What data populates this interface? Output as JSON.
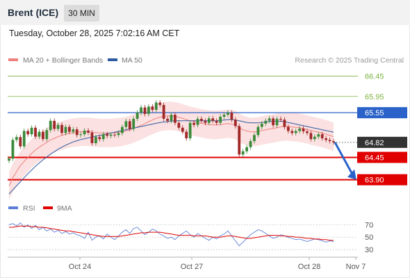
{
  "header": {
    "instrument": "Brent (ICE)",
    "timeframe": "30 MIN",
    "timestamp": "Tuesday, October 28, 2025 7:02:16 AM CET"
  },
  "legend": {
    "ma20_label": "MA 20 + Bollinger Bands",
    "ma20_color": "#f08080",
    "ma50_label": "MA 50",
    "ma50_color": "#2c5aa0"
  },
  "copyright": "Research © 2025 Trading Central",
  "chart_data": [
    {
      "type": "line",
      "title": "",
      "xlabel": "",
      "ylabel": "",
      "ylim": [
        63.5,
        66.75
      ],
      "x_ticks": [
        "Oct 24",
        "Oct 27",
        "Oct 28",
        "Nov 7"
      ],
      "levels": [
        {
          "value": 66.45,
          "label": "66.45",
          "kind": "resistance",
          "color": "#7cb342"
        },
        {
          "value": 65.95,
          "label": "65.95",
          "kind": "resistance",
          "color": "#7cb342"
        },
        {
          "value": 65.55,
          "label": "65.55",
          "kind": "pivot",
          "color": "#2a62c9"
        },
        {
          "value": 64.45,
          "label": "64.45",
          "kind": "support",
          "color": "#e00000"
        },
        {
          "value": 63.9,
          "label": "63.90",
          "kind": "support",
          "color": "#e00000"
        }
      ],
      "last_price": {
        "value": 64.82,
        "label": "64.82",
        "color": "#333333"
      },
      "forecast_arrow": {
        "from": 64.82,
        "to": 63.9,
        "color": "#2a62c9"
      },
      "series": [
        {
          "name": "Price",
          "values": [
            64.42,
            64.88,
            64.95,
            64.72,
            65.1,
            65.02,
            65.18,
            64.96,
            65.08,
            64.9,
            65.12,
            65.35,
            65.15,
            65.25,
            65.05,
            65.2,
            65.08,
            65.14,
            65.0,
            65.02,
            65.11,
            65.06,
            64.8,
            64.95,
            64.9,
            65.02,
            64.98,
            65.01,
            65.0,
            65.05,
            65.2,
            65.34,
            65.15,
            65.4,
            65.55,
            65.68,
            65.52,
            65.7,
            65.62,
            65.8,
            65.74,
            65.4,
            65.35,
            65.5,
            65.3,
            65.18,
            65.08,
            64.92,
            65.3,
            65.25,
            65.4,
            65.35,
            65.3,
            65.41,
            65.35,
            65.3,
            65.45,
            65.5,
            65.55,
            65.38,
            65.22,
            64.52,
            64.6,
            64.7,
            64.85,
            65.0,
            65.2,
            65.28,
            65.35,
            65.41,
            65.24,
            65.4,
            65.38,
            65.2,
            65.1,
            65.05,
            65.1,
            65.16,
            65.09,
            65.05,
            64.9,
            64.96,
            65.02,
            64.92,
            64.88,
            64.85,
            64.82
          ]
        },
        {
          "name": "MA 20",
          "values": [
            63.75,
            63.95,
            64.1,
            64.25,
            64.35,
            64.45,
            64.55,
            64.63,
            64.7,
            64.76,
            64.82,
            64.88,
            64.92,
            64.96,
            64.99,
            65.02,
            65.04,
            65.06,
            65.07,
            65.08,
            65.08,
            65.08,
            65.07,
            65.06,
            65.05,
            65.05,
            65.05,
            65.05,
            65.06,
            65.07,
            65.08,
            65.1,
            65.13,
            65.16,
            65.2,
            65.24,
            65.28,
            65.33,
            65.37,
            65.41,
            65.44,
            65.46,
            65.47,
            65.47,
            65.46,
            65.44,
            65.41,
            65.38,
            65.35,
            65.33,
            65.31,
            65.29,
            65.27,
            65.26,
            65.25,
            65.25,
            65.26,
            65.27,
            65.28,
            65.27,
            65.25,
            65.18,
            65.13,
            65.1,
            65.08,
            65.08,
            65.09,
            65.11,
            65.13,
            65.15,
            65.16,
            65.18,
            65.2,
            65.21,
            65.21,
            65.2,
            65.19,
            65.18,
            65.16,
            65.14,
            65.11,
            65.09,
            65.07,
            65.05,
            65.02,
            64.99,
            64.96
          ]
        },
        {
          "name": "MA 50",
          "values": [
            63.55,
            63.65,
            63.75,
            63.85,
            63.95,
            64.05,
            64.14,
            64.23,
            64.31,
            64.39,
            64.46,
            64.53,
            64.59,
            64.65,
            64.7,
            64.75,
            64.79,
            64.83,
            64.86,
            64.89,
            64.91,
            64.93,
            64.95,
            64.97,
            64.99,
            65.01,
            65.03,
            65.05,
            65.07,
            65.09,
            65.11,
            65.13,
            65.15,
            65.17,
            65.19,
            65.21,
            65.23,
            65.25,
            65.27,
            65.29,
            65.31,
            65.32,
            65.33,
            65.34,
            65.35,
            65.35,
            65.35,
            65.35,
            65.35,
            65.35,
            65.35,
            65.35,
            65.35,
            65.35,
            65.35,
            65.35,
            65.36,
            65.37,
            65.38,
            65.38,
            65.37,
            65.35,
            65.33,
            65.31,
            65.3,
            65.3,
            65.3,
            65.31,
            65.32,
            65.33,
            65.34,
            65.34,
            65.34,
            65.33,
            65.31,
            65.29,
            65.27,
            65.25,
            65.23,
            65.21,
            65.19,
            65.17,
            65.15,
            65.13,
            65.11,
            65.09,
            65.07
          ]
        }
      ],
      "bollinger_width": 0.35
    },
    {
      "type": "line",
      "title": "",
      "ylim": [
        20,
        85
      ],
      "y_ticks": [
        70,
        50,
        30
      ],
      "x_ticks": [
        "Oct 24",
        "Oct 27",
        "Oct 28",
        "Nov 7"
      ],
      "series": [
        {
          "name": "RSI",
          "color": "#5b7fd6",
          "values": [
            70,
            72,
            68,
            73,
            66,
            70,
            64,
            69,
            62,
            66,
            60,
            63,
            58,
            61,
            56,
            59,
            55,
            57,
            54,
            52,
            48,
            58,
            45,
            50,
            52,
            47,
            55,
            50,
            46,
            52,
            58,
            62,
            56,
            64,
            66,
            60,
            54,
            58,
            63,
            60,
            55,
            52,
            48,
            50,
            46,
            52,
            56,
            60,
            54,
            50,
            56,
            52,
            48,
            45,
            50,
            47,
            52,
            55,
            60,
            52,
            44,
            36,
            42,
            48,
            54,
            58,
            62,
            60,
            56,
            52,
            48,
            50,
            54,
            52,
            50,
            48,
            46,
            47,
            45,
            43,
            45,
            47,
            46,
            44,
            42,
            44,
            43
          ]
        },
        {
          "name": "9MA",
          "color": "#e00000",
          "values": [
            66,
            66,
            67,
            68,
            68,
            68,
            67,
            67,
            66,
            66,
            65,
            64,
            63,
            62,
            61,
            60,
            60,
            59,
            58,
            57,
            56,
            55,
            54,
            53,
            52,
            51,
            51,
            51,
            51,
            51,
            52,
            53,
            54,
            55,
            56,
            57,
            57,
            58,
            58,
            58,
            58,
            57,
            56,
            55,
            54,
            53,
            53,
            53,
            53,
            52,
            52,
            52,
            52,
            51,
            50,
            50,
            50,
            51,
            52,
            52,
            51,
            50,
            49,
            48,
            48,
            49,
            50,
            51,
            52,
            53,
            53,
            53,
            52,
            52,
            51,
            51,
            50,
            50,
            49,
            48,
            48,
            47,
            47,
            46,
            46,
            45,
            45
          ]
        }
      ]
    }
  ]
}
